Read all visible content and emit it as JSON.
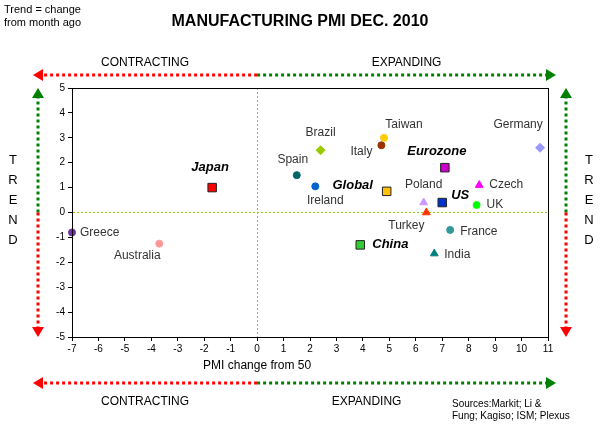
{
  "chart_data": {
    "type": "scatter",
    "title": "MANUFACTURING PMI DEC. 2010",
    "note": [
      "Trend = change",
      "from month ago"
    ],
    "x_label": "PMI change from 50",
    "y_label": "TREND",
    "arrow_labels": [
      "CONTRACTING",
      "EXPANDING"
    ],
    "source": [
      "Sources:Markit; Li &",
      "Fung; Kagiso; ISM; Plexus"
    ],
    "xlim": [
      -7,
      11
    ],
    "xticks": [
      -7,
      -6,
      -5,
      -4,
      -3,
      -2,
      -1,
      0,
      1,
      2,
      3,
      4,
      5,
      6,
      7,
      8,
      9,
      10,
      11
    ],
    "ylim": [
      -5,
      5
    ],
    "yticks": [
      -5,
      -4,
      -3,
      -2,
      -1,
      0,
      1,
      2,
      3,
      4,
      5
    ],
    "grid": false,
    "legend": false,
    "series": [
      {
        "name": "Greece",
        "color": "#7030a0",
        "marker": "circle",
        "x": [
          -7.0
        ],
        "values": [
          -0.8
        ]
      },
      {
        "name": "Australia",
        "color": "#ff9999",
        "marker": "circle",
        "x": [
          -3.7
        ],
        "values": [
          -1.25
        ]
      },
      {
        "name": "Japan",
        "color": "#ff0000",
        "marker": "square",
        "x": [
          -1.7
        ],
        "values": [
          1.0
        ]
      },
      {
        "name": "Brazil",
        "color": "#99cc00",
        "marker": "diamond",
        "x": [
          2.4
        ],
        "values": [
          2.5
        ]
      },
      {
        "name": "Spain",
        "color": "#006666",
        "marker": "circle",
        "x": [
          1.5
        ],
        "values": [
          1.5
        ]
      },
      {
        "name": "Ireland",
        "color": "#0066cc",
        "marker": "circle",
        "x": [
          2.2
        ],
        "values": [
          1.05
        ]
      },
      {
        "name": "Taiwan",
        "color": "#ffcc00",
        "marker": "circle",
        "x": [
          4.8
        ],
        "values": [
          3.0
        ]
      },
      {
        "name": "Italy",
        "color": "#993300",
        "marker": "circle",
        "x": [
          4.7
        ],
        "values": [
          2.7
        ]
      },
      {
        "name": "Global",
        "color": "#ffc000",
        "marker": "square",
        "x": [
          4.9
        ],
        "values": [
          0.85
        ]
      },
      {
        "name": "Eurozone",
        "color": "#cc00cc",
        "marker": "square",
        "x": [
          7.1
        ],
        "values": [
          1.8
        ]
      },
      {
        "name": "Germany",
        "color": "#9999ff",
        "marker": "diamond",
        "x": [
          10.7
        ],
        "values": [
          2.6
        ]
      },
      {
        "name": "Poland",
        "color": "#cc99ff",
        "marker": "triangle",
        "x": [
          6.3
        ],
        "values": [
          0.4
        ]
      },
      {
        "name": "US",
        "color": "#0033cc",
        "marker": "square",
        "x": [
          7.0
        ],
        "values": [
          0.4
        ]
      },
      {
        "name": "Czech",
        "color": "#ff00ff",
        "marker": "triangle",
        "x": [
          8.4
        ],
        "values": [
          1.1
        ]
      },
      {
        "name": "UK",
        "color": "#00ff00",
        "marker": "circle",
        "x": [
          8.3
        ],
        "values": [
          0.3
        ]
      },
      {
        "name": "Turkey",
        "color": "#ff3300",
        "marker": "triangle",
        "x": [
          6.4
        ],
        "values": [
          0.0
        ]
      },
      {
        "name": "France",
        "color": "#339999",
        "marker": "circle",
        "x": [
          7.3
        ],
        "values": [
          -0.7
        ]
      },
      {
        "name": "China",
        "color": "#33cc33",
        "marker": "square",
        "x": [
          3.9
        ],
        "values": [
          -1.3
        ]
      },
      {
        "name": "India",
        "color": "#008080",
        "marker": "triangle",
        "x": [
          6.7
        ],
        "values": [
          -1.65
        ]
      }
    ]
  }
}
